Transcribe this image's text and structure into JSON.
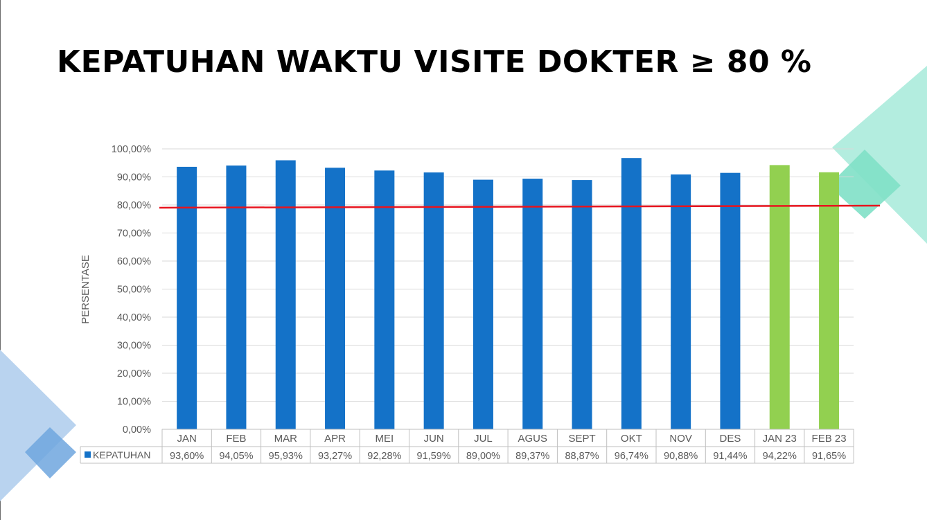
{
  "slide": {
    "title": "KEPATUHAN WAKTU VISITE DOKTER ≥  80 %"
  },
  "chart_data": {
    "type": "bar",
    "title": "",
    "xlabel": "",
    "ylabel": "PERSENTASE",
    "ylim": [
      0,
      100
    ],
    "y_ticks": [
      "0,00%",
      "10,00%",
      "20,00%",
      "30,00%",
      "40,00%",
      "50,00%",
      "60,00%",
      "70,00%",
      "80,00%",
      "90,00%",
      "100,00%"
    ],
    "grid": true,
    "legend_placement": "data-table-left",
    "categories": [
      "JAN",
      "FEB",
      "MAR",
      "APR",
      "MEI",
      "JUN",
      "JUL",
      "AGUS",
      "SEPT",
      "OKT",
      "NOV",
      "DES",
      "JAN 23",
      "FEB 23"
    ],
    "series": [
      {
        "name": "KEPATUHAN",
        "values": [
          93.6,
          94.05,
          95.93,
          93.27,
          92.28,
          91.59,
          89.0,
          89.37,
          88.87,
          96.74,
          90.88,
          91.44,
          94.22,
          91.65
        ],
        "labels": [
          "93,60%",
          "94,05%",
          "95,93%",
          "93,27%",
          "92,28%",
          "91,59%",
          "89,00%",
          "89,37%",
          "88,87%",
          "96,74%",
          "90,88%",
          "91,44%",
          "94,22%",
          "91,65%"
        ]
      }
    ],
    "bar_colors": [
      "#1472C8",
      "#1472C8",
      "#1472C8",
      "#1472C8",
      "#1472C8",
      "#1472C8",
      "#1472C8",
      "#1472C8",
      "#1472C8",
      "#1472C8",
      "#1472C8",
      "#1472C8",
      "#92D050",
      "#92D050"
    ],
    "target_line": {
      "value": 80,
      "color": "#E8141E"
    },
    "colors": {
      "primary": "#1472C8",
      "highlight": "#92D050",
      "grid": "#D9D9D9",
      "text": "#595959"
    }
  }
}
